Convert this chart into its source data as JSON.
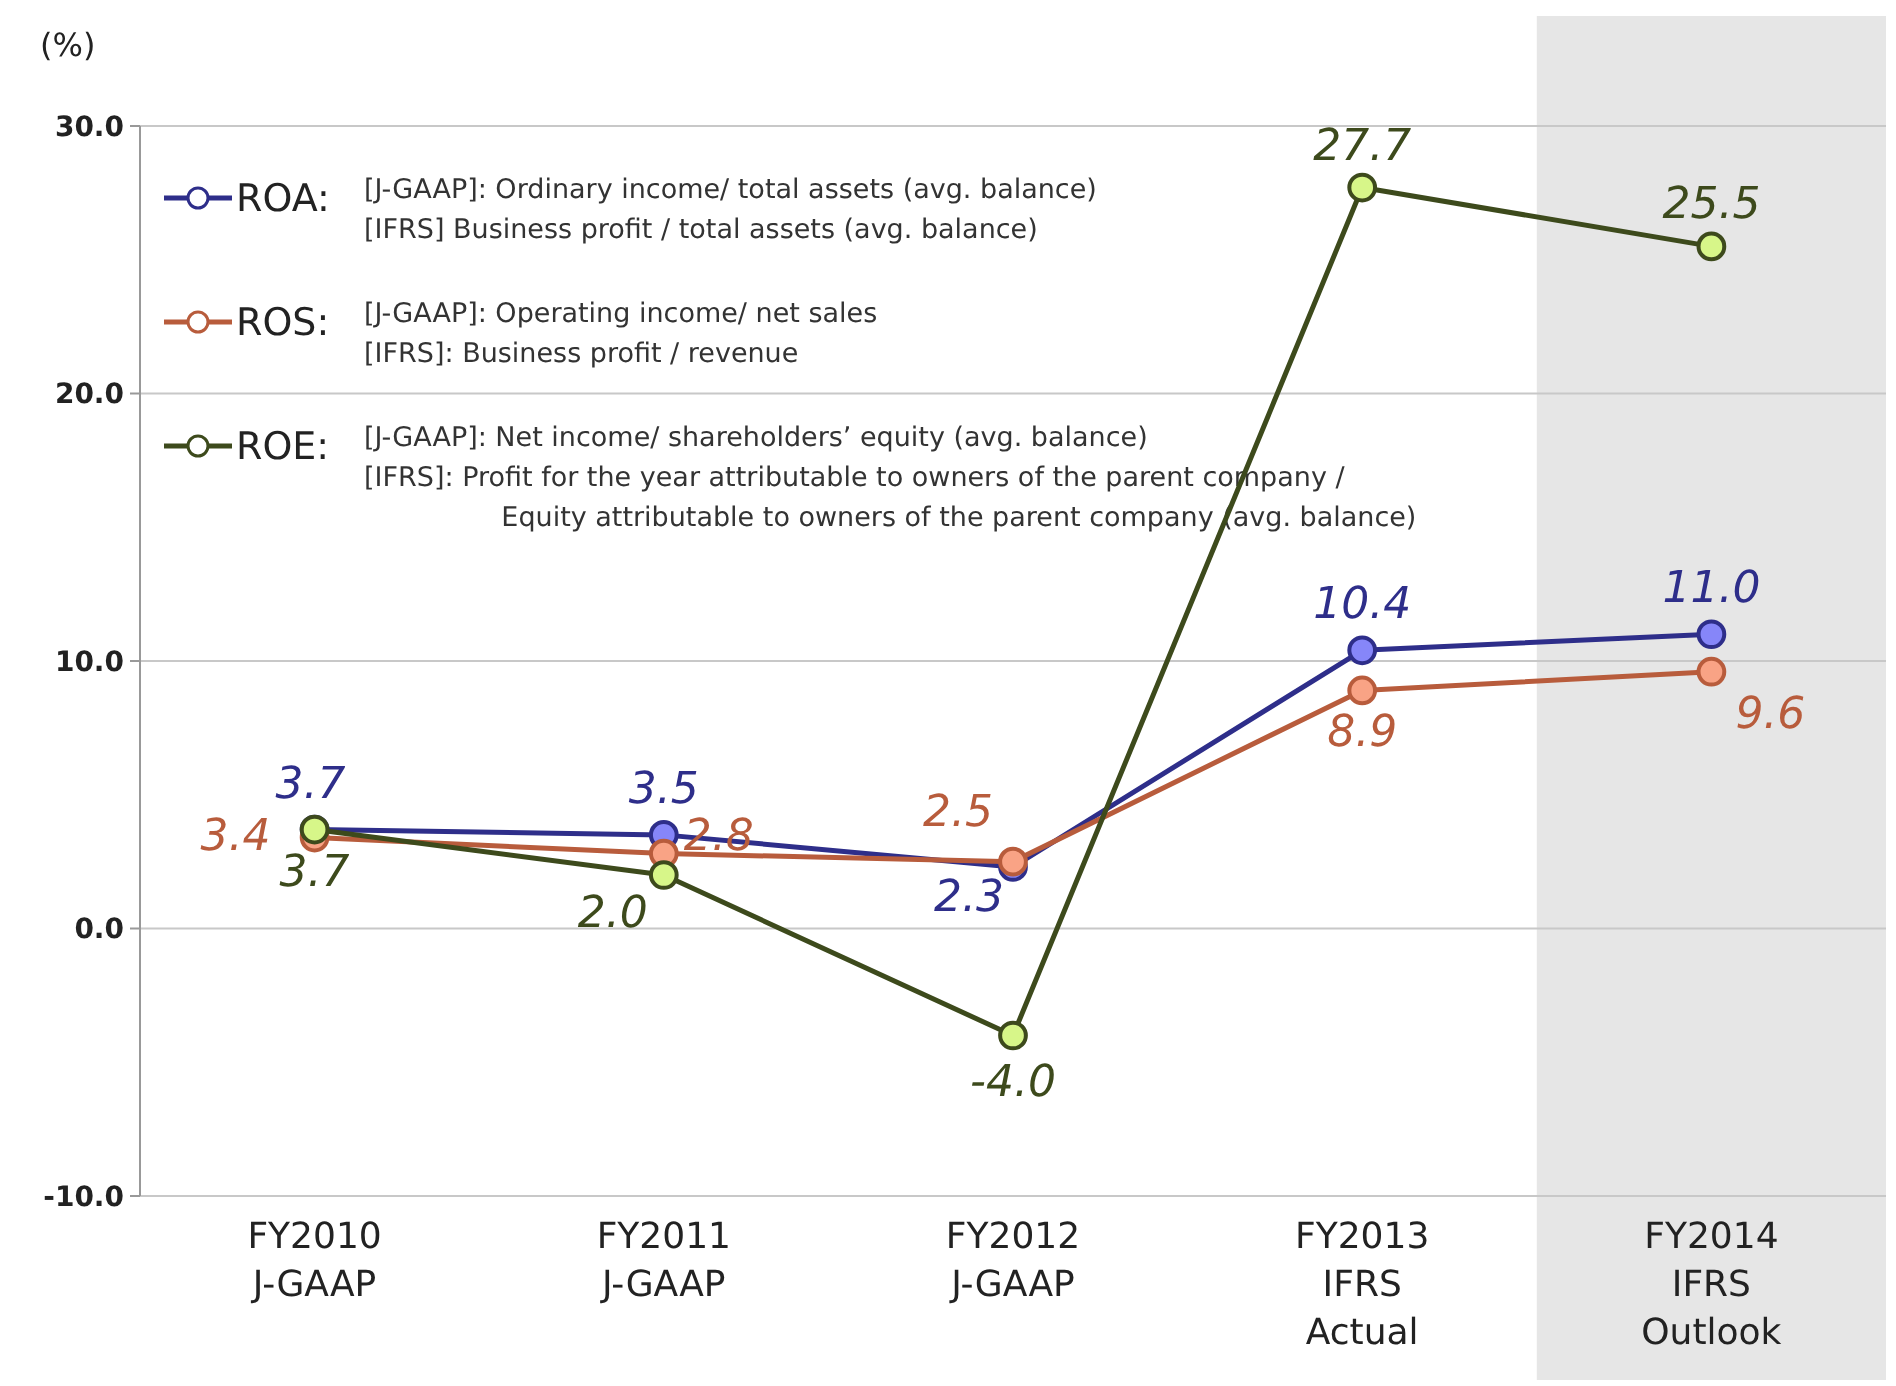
{
  "chart_data": {
    "type": "line",
    "ylabel": "(%)",
    "categories": [
      "FY2010\nJ-GAAP",
      "FY2011\nJ-GAAP",
      "FY2012\nJ-GAAP",
      "FY2013\nIFRS\nActual",
      "FY2014\nIFRS\nOutlook"
    ],
    "series": [
      {
        "name": "ROA:",
        "color": "#2e2e8a",
        "values": [
          3.7,
          3.5,
          2.3,
          10.4,
          11.0
        ],
        "value_labels": [
          "3.7",
          "3.5",
          "2.3",
          "10.4",
          "11.0"
        ]
      },
      {
        "name": "ROS:",
        "color": "#b85c3c",
        "values": [
          3.4,
          2.8,
          2.5,
          8.9,
          9.6
        ],
        "value_labels": [
          "3.4",
          "2.8",
          "2.5",
          "8.9",
          "9.6"
        ]
      },
      {
        "name": "ROE:",
        "color": "#3d4a1c",
        "values": [
          3.7,
          2.0,
          -4.0,
          27.7,
          25.5
        ],
        "value_labels": [
          "3.7",
          "2.0",
          "-4.0",
          "27.7",
          "25.5"
        ]
      }
    ],
    "ylim": [
      -10,
      30
    ],
    "yticks": [
      {
        "value": -10,
        "label": "-10.0"
      },
      {
        "value": 0,
        "label": "0.0"
      },
      {
        "value": 10,
        "label": "10.0"
      },
      {
        "value": 20,
        "label": "20.0"
      },
      {
        "value": 30,
        "label": "30.0"
      }
    ],
    "grid": "y",
    "marker": "circle",
    "legend": "top left",
    "bands": [
      {
        "axis": "x",
        "from": "FY2014\nIFRS\nOutlook",
        "to": "FY2014\nIFRS\nOutlook",
        "color": "#e6e6e6"
      }
    ],
    "annotations": [
      "[J-GAAP]: Ordinary income/ total assets (avg. balance)\n[IFRS] Business profit / total assets (avg. balance)",
      "[J-GAAP]: Operating income/ net sales\n[IFRS]: Business profit / revenue",
      "[J-GAAP]: Net income/ shareholders’ equity (avg. balance)\n[IFRS]: Profit for the year attributable to owners of the parent company /\n                Equity attributable to owners of the parent company (avg. balance)"
    ]
  }
}
